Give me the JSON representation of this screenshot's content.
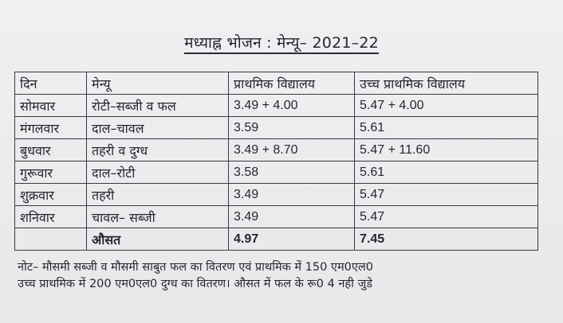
{
  "title": "मध्याह्न भोजन : मेन्यू– 2021–22",
  "table": {
    "headers": [
      "दिन",
      "मेन्यू",
      "प्राथमिक विद्यालय",
      "उच्च प्राथमिक विद्यालय"
    ],
    "rows": [
      [
        "सोमवार",
        "रोटी–सब्जी व फल",
        "3.49 + 4.00",
        "5.47 + 4.00"
      ],
      [
        "मंगलवार",
        "दाल–चावल",
        "3.59",
        "5.61"
      ],
      [
        "बुधवार",
        "तहरी व दुग्ध",
        "3.49 + 8.70",
        "5.47 + 11.60"
      ],
      [
        "गुरूवार",
        "दाल–रोटी",
        "3.58",
        "5.61"
      ],
      [
        "शुक्रवार",
        "तहरी",
        "3.49",
        "5.47"
      ],
      [
        "शनिवार",
        "चावल– सब्जी",
        "3.49",
        "5.47"
      ]
    ],
    "average": {
      "day": "",
      "label": "औसत",
      "primary": "4.97",
      "upper_primary": "7.45"
    }
  },
  "note": {
    "line1": "नोट– मौसमी सब्जी व मौसमी साबुत फल का वितरण एवं प्राथमिक में 150 एम0एल0",
    "line2": "उच्च प्राथमिक में 200 एम0एल0 दुग्ध का वितरण। औसत में फल के रू0 4 नही जुडे"
  }
}
